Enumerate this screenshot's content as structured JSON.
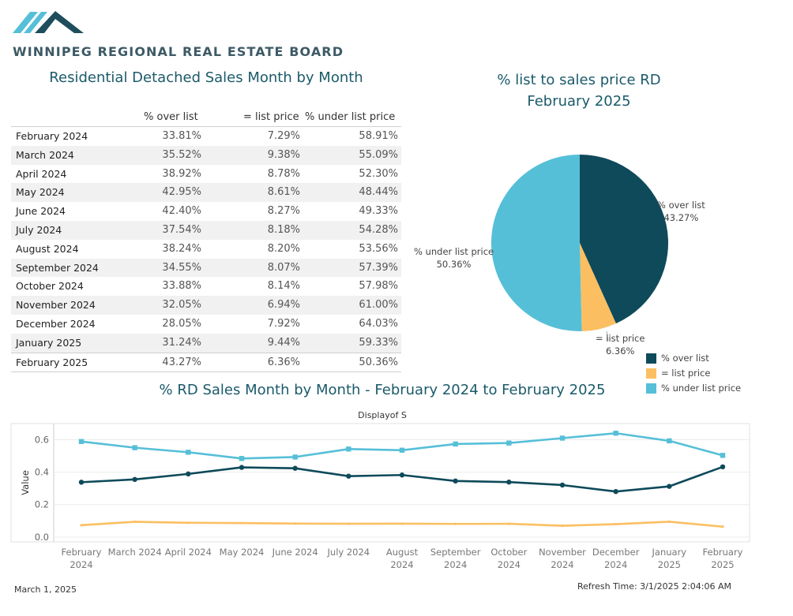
{
  "header": {
    "org_name": "WINNIPEG REGIONAL REAL ESTATE BOARD"
  },
  "colors": {
    "over": "#0e4a5a",
    "at": "#fbbf62",
    "under": "#56bfd8",
    "title": "#1b5a6a"
  },
  "table": {
    "title": "Residential Detached Sales Month by Month",
    "columns": [
      "% over list",
      "= list price",
      "% under list price"
    ],
    "rows": [
      {
        "month": "February 2024",
        "over": "33.81%",
        "at": "7.29%",
        "under": "58.91%"
      },
      {
        "month": "March 2024",
        "over": "35.52%",
        "at": "9.38%",
        "under": "55.09%"
      },
      {
        "month": "April 2024",
        "over": "38.92%",
        "at": "8.78%",
        "under": "52.30%"
      },
      {
        "month": "May 2024",
        "over": "42.95%",
        "at": "8.61%",
        "under": "48.44%"
      },
      {
        "month": "June 2024",
        "over": "42.40%",
        "at": "8.27%",
        "under": "49.33%"
      },
      {
        "month": "July 2024",
        "over": "37.54%",
        "at": "8.18%",
        "under": "54.28%"
      },
      {
        "month": "August 2024",
        "over": "38.24%",
        "at": "8.20%",
        "under": "53.56%"
      },
      {
        "month": "September 2024",
        "over": "34.55%",
        "at": "8.07%",
        "under": "57.39%"
      },
      {
        "month": "October 2024",
        "over": "33.88%",
        "at": "8.14%",
        "under": "57.98%"
      },
      {
        "month": "November 2024",
        "over": "32.05%",
        "at": "6.94%",
        "under": "61.00%"
      },
      {
        "month": "December 2024",
        "over": "28.05%",
        "at": "7.92%",
        "under": "64.03%"
      },
      {
        "month": "January 2025",
        "over": "31.24%",
        "at": "9.44%",
        "under": "59.33%"
      },
      {
        "month": "February 2025",
        "over": "43.27%",
        "at": "6.36%",
        "under": "50.36%"
      }
    ]
  },
  "pie": {
    "title_line1": "% list to sales price RD",
    "title_line2": "February 2025",
    "labels": {
      "over_name": "% over list",
      "over_value": "43.27%",
      "at_name": "= list price",
      "at_value": "6.36%",
      "under_name": "% under list price",
      "under_value": "50.36%"
    },
    "legend": [
      "% over list",
      "= list price",
      "% under list price"
    ]
  },
  "line": {
    "title": "% RD Sales Month by Month - February 2024 to February 2025",
    "subtitle": "Displayof S",
    "ylabel": "Value"
  },
  "chart_data": [
    {
      "type": "pie",
      "title": "% list to sales price RD February 2025",
      "categories": [
        "% over list",
        "= list price",
        "% under list price"
      ],
      "values": [
        43.27,
        6.36,
        50.36
      ]
    },
    {
      "type": "line",
      "title": "% RD Sales Month by Month - February 2024 to February 2025",
      "subtitle": "Displayof S",
      "xlabel": "",
      "ylabel": "Value",
      "ylim": [
        -0.03,
        0.7
      ],
      "yticks": [
        0.0,
        0.2,
        0.4,
        0.6
      ],
      "ytick_labels": [
        "0.0",
        "0.2",
        "0.4",
        "0.6"
      ],
      "grid": true,
      "x": [
        [
          "February",
          "2024"
        ],
        [
          "March 2024"
        ],
        [
          "April 2024"
        ],
        [
          "May 2024"
        ],
        [
          "June 2024"
        ],
        [
          "July 2024"
        ],
        [
          "August",
          "2024"
        ],
        [
          "September",
          "2024"
        ],
        [
          "October",
          "2024"
        ],
        [
          "November",
          "2024"
        ],
        [
          "December",
          "2024"
        ],
        [
          "January",
          "2025"
        ],
        [
          "February",
          "2025"
        ]
      ],
      "series": [
        {
          "name": "% over list",
          "color": "#0e4a5a",
          "marker": "circle",
          "values": [
            0.3381,
            0.3552,
            0.3892,
            0.4295,
            0.424,
            0.3754,
            0.3824,
            0.3455,
            0.3388,
            0.3205,
            0.2805,
            0.3124,
            0.4327
          ]
        },
        {
          "name": "= list price",
          "color": "#fbbf62",
          "marker": "none",
          "values": [
            0.0729,
            0.0938,
            0.0878,
            0.0861,
            0.0827,
            0.0818,
            0.082,
            0.0807,
            0.0814,
            0.0694,
            0.0792,
            0.0944,
            0.0636
          ]
        },
        {
          "name": "% under list price",
          "color": "#56bfd8",
          "marker": "square",
          "values": [
            0.5891,
            0.5509,
            0.523,
            0.4844,
            0.4933,
            0.5428,
            0.5356,
            0.5739,
            0.5798,
            0.61,
            0.6403,
            0.5933,
            0.5036
          ]
        }
      ]
    }
  ],
  "footer": {
    "date": "March 1, 2025",
    "refresh": "Refresh Time: 3/1/2025 2:04:06 AM"
  }
}
